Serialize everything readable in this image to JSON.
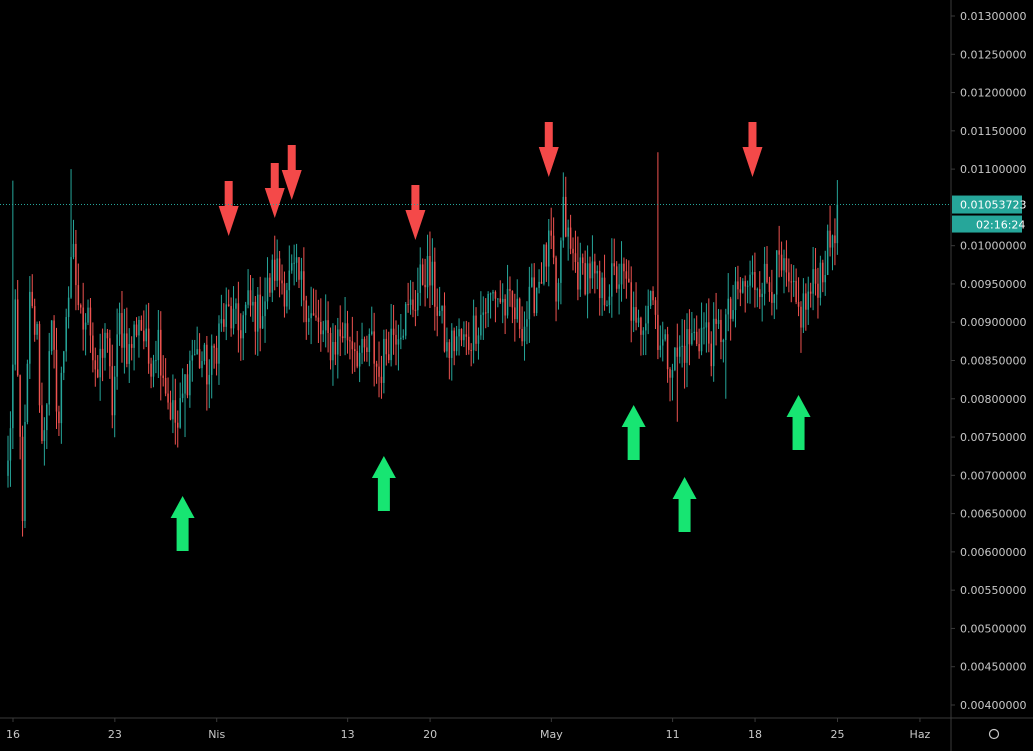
{
  "chart_data": {
    "type": "candlestick",
    "colors": {
      "background": "#000000",
      "up": "#26a69a",
      "down": "#ef5350",
      "price_line": "#26a69a",
      "badge": "#26a69a",
      "sell_arrow": "#f44949",
      "buy_arrow": "#17e572",
      "axis_line": "#3a3a3a",
      "axis_text": "#c8c8c8"
    },
    "y_ticks": [
      "0.01300000",
      "0.01250000",
      "0.01200000",
      "0.01150000",
      "0.01100000",
      "0.01050000",
      "0.01000000",
      "0.00950000",
      "0.00900000",
      "0.00850000",
      "0.00800000",
      "0.00750000",
      "0.00700000",
      "0.00650000",
      "0.00600000",
      "0.00550000",
      "0.00500000",
      "0.00450000",
      "0.00400000"
    ],
    "ylim": [
      0.0038,
      0.0132
    ],
    "x_ticks": [
      {
        "label": "16",
        "bar": 0
      },
      {
        "label": "23",
        "bar": 42
      },
      {
        "label": "Nis",
        "bar": 84
      },
      {
        "label": "13",
        "bar": 138
      },
      {
        "label": "20",
        "bar": 172
      },
      {
        "label": "May",
        "bar": 222
      },
      {
        "label": "11",
        "bar": 272
      },
      {
        "label": "18",
        "bar": 306
      },
      {
        "label": "25",
        "bar": 340
      },
      {
        "label": "Haz",
        "bar": 374
      }
    ],
    "current_price": "0.01053723",
    "countdown": "02:16:24",
    "current_value": 0.01053723,
    "anchors": [
      [
        0,
        0.0071
      ],
      [
        3,
        0.009
      ],
      [
        6,
        0.0066
      ],
      [
        9,
        0.0092
      ],
      [
        12,
        0.0088
      ],
      [
        14,
        0.0074
      ],
      [
        18,
        0.0088
      ],
      [
        21,
        0.0077
      ],
      [
        24,
        0.0092
      ],
      [
        27,
        0.0098
      ],
      [
        30,
        0.009
      ],
      [
        33,
        0.0093
      ],
      [
        36,
        0.0081
      ],
      [
        40,
        0.0089
      ],
      [
        43,
        0.0079
      ],
      [
        46,
        0.009
      ],
      [
        50,
        0.0086
      ],
      [
        54,
        0.0091
      ],
      [
        58,
        0.0085
      ],
      [
        62,
        0.0088
      ],
      [
        66,
        0.008
      ],
      [
        70,
        0.0076
      ],
      [
        73,
        0.0082
      ],
      [
        76,
        0.0086
      ],
      [
        80,
        0.0085
      ],
      [
        83,
        0.0083
      ],
      [
        87,
        0.0089
      ],
      [
        91,
        0.0091
      ],
      [
        95,
        0.0089
      ],
      [
        99,
        0.0092
      ],
      [
        103,
        0.0091
      ],
      [
        106,
        0.0093
      ],
      [
        110,
        0.0097
      ],
      [
        114,
        0.0095
      ],
      [
        118,
        0.0096
      ],
      [
        122,
        0.0094
      ],
      [
        126,
        0.009
      ],
      [
        130,
        0.0088
      ],
      [
        134,
        0.0087
      ],
      [
        138,
        0.0089
      ],
      [
        142,
        0.0088
      ],
      [
        146,
        0.0085
      ],
      [
        150,
        0.0087
      ],
      [
        153,
        0.0083
      ],
      [
        157,
        0.0088
      ],
      [
        161,
        0.009
      ],
      [
        165,
        0.0091
      ],
      [
        169,
        0.0094
      ],
      [
        172,
        0.0097
      ],
      [
        175,
        0.0095
      ],
      [
        178,
        0.0091
      ],
      [
        181,
        0.0086
      ],
      [
        185,
        0.0088
      ],
      [
        189,
        0.0087
      ],
      [
        193,
        0.009
      ],
      [
        197,
        0.0092
      ],
      [
        201,
        0.0094
      ],
      [
        205,
        0.0092
      ],
      [
        209,
        0.0091
      ],
      [
        213,
        0.009
      ],
      [
        217,
        0.0094
      ],
      [
        220,
        0.0097
      ],
      [
        224,
        0.01
      ],
      [
        226,
        0.0091
      ],
      [
        229,
        0.0104
      ],
      [
        232,
        0.0099
      ],
      [
        236,
        0.0096
      ],
      [
        240,
        0.0097
      ],
      [
        244,
        0.0093
      ],
      [
        248,
        0.0095
      ],
      [
        252,
        0.0096
      ],
      [
        256,
        0.0094
      ],
      [
        259,
        0.0088
      ],
      [
        262,
        0.0091
      ],
      [
        265,
        0.0095
      ],
      [
        268,
        0.0089
      ],
      [
        271,
        0.0086
      ],
      [
        275,
        0.0085
      ],
      [
        279,
        0.0087
      ],
      [
        283,
        0.0088
      ],
      [
        287,
        0.0089
      ],
      [
        290,
        0.0087
      ],
      [
        294,
        0.0089
      ],
      [
        298,
        0.0091
      ],
      [
        302,
        0.0094
      ],
      [
        306,
        0.0095
      ],
      [
        310,
        0.0096
      ],
      [
        314,
        0.0095
      ],
      [
        318,
        0.0097
      ],
      [
        322,
        0.0094
      ],
      [
        326,
        0.0091
      ],
      [
        330,
        0.0093
      ],
      [
        334,
        0.0096
      ],
      [
        338,
        0.0099
      ],
      [
        341,
        0.0103
      ],
      [
        342,
        0.01053723
      ]
    ],
    "spikes": [
      {
        "bar": 2,
        "high": 0.01085
      },
      {
        "bar": 6,
        "low": 0.0062
      },
      {
        "bar": 26,
        "high": 0.011
      },
      {
        "bar": 73,
        "low": 0.0075
      },
      {
        "bar": 154,
        "low": 0.008
      },
      {
        "bar": 230,
        "high": 0.0109
      },
      {
        "bar": 268,
        "high": 0.01122
      },
      {
        "bar": 276,
        "low": 0.0077
      },
      {
        "bar": 296,
        "low": 0.008
      }
    ],
    "annotations": [
      {
        "type": "sell",
        "bar": 91
      },
      {
        "type": "sell",
        "bar": 110
      },
      {
        "type": "sell",
        "bar": 117
      },
      {
        "type": "sell",
        "bar": 168
      },
      {
        "type": "sell",
        "bar": 223
      },
      {
        "type": "sell",
        "bar": 307
      },
      {
        "type": "buy",
        "bar": 72
      },
      {
        "type": "buy",
        "bar": 155
      },
      {
        "type": "buy",
        "bar": 258
      },
      {
        "type": "buy",
        "bar": 279
      },
      {
        "type": "buy",
        "bar": 326
      }
    ]
  }
}
